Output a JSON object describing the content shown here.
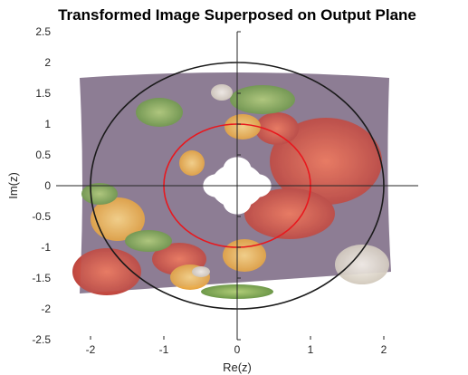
{
  "chart_data": {
    "type": "image-plot",
    "title": "Transformed Image Superposed on Output Plane",
    "xlabel": "Re(z)",
    "ylabel": "Im(z)",
    "xlim": [
      -2.5,
      2.5
    ],
    "ylim": [
      -2.5,
      2.5
    ],
    "xticks": [
      -2,
      -1,
      0,
      1,
      2
    ],
    "xtick_labels": [
      "-2",
      "-1",
      "0",
      "1",
      "2"
    ],
    "yticks": [
      2.5,
      2,
      1.5,
      1,
      0.5,
      0,
      -0.5,
      -1,
      -1.5,
      -2,
      -2.5
    ],
    "ytick_labels": [
      "2.5",
      "2",
      "1.5",
      "1",
      "0.5",
      "0",
      "-0.5",
      "-1",
      "-1.5",
      "-2",
      "-2.5"
    ],
    "image_content": "transformed photo of peppers (red, yellow, green) and garlic",
    "annular_region": {
      "inner_radius": 0.5,
      "outer_radius": 2.0
    },
    "circles": [
      {
        "radius": 2.0,
        "color": "#1a1a1a"
      },
      {
        "radius": 1.0,
        "color": "#e8181e"
      }
    ],
    "grid": false,
    "axes_through_origin": true
  }
}
